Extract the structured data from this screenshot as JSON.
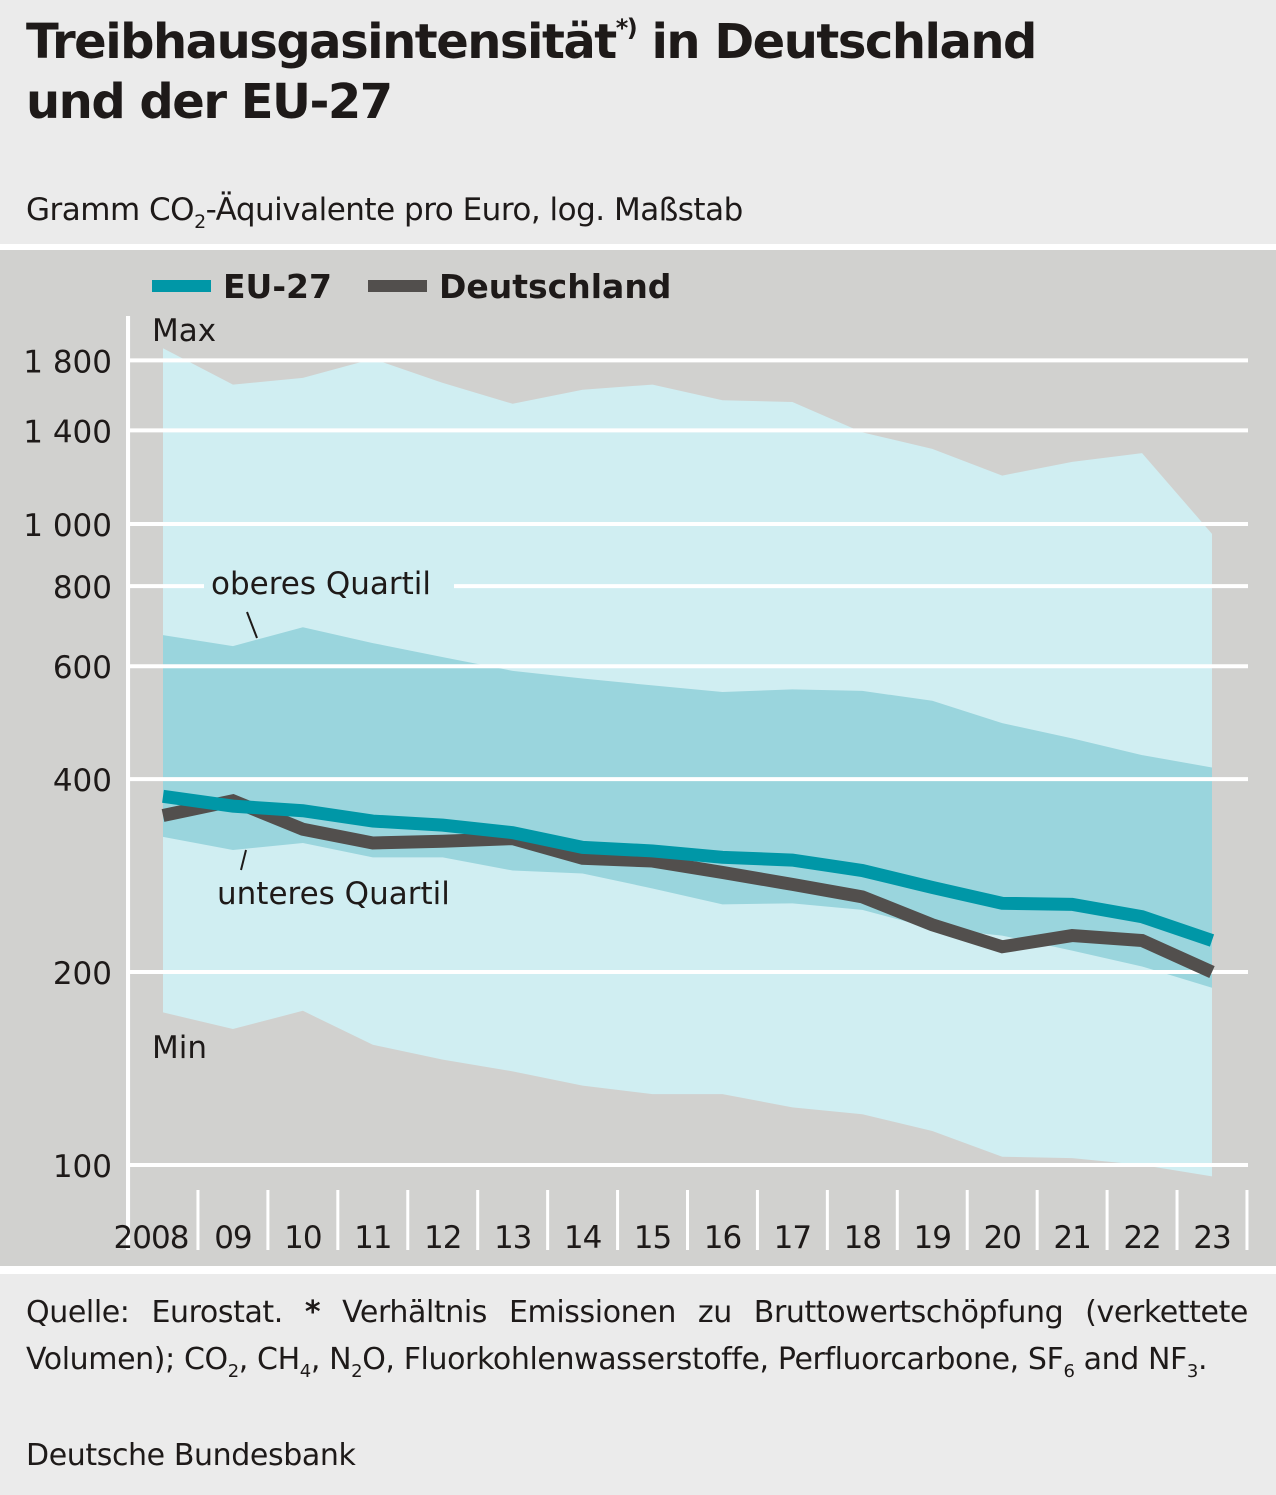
{
  "header": {
    "title_line1": "Treibhausgasintensität",
    "title_footnote_mark": "*)",
    "title_line1_rest": " in Deutschland",
    "title_line2": "und der EU-27",
    "subtitle_pre": "Gramm CO",
    "subtitle_sub": "2",
    "subtitle_post": "-Äquivalente pro Euro, log. Maßstab"
  },
  "footer": {
    "note_parts": [
      "Quelle: Eurostat. ",
      "*",
      " Verhältnis Emissionen zu Bruttowertschöpfung (verkettete Volumen); CO",
      "2",
      ", CH",
      "4",
      ", N",
      "2",
      "O, Fluorkohlenwasserstoffe, Perfluorcarbone, SF",
      "6",
      " and NF",
      "3",
      "."
    ],
    "source": "Deutsche Bundesbank"
  },
  "colors": {
    "eu27": "#0097a7",
    "deutschland": "#524f4d",
    "range_max_min": "#d0eef2",
    "range_quartile": "#9ad5dd",
    "plot_background": "#d1d1cf",
    "gridline": "#ffffff"
  },
  "chart_data": {
    "type": "line",
    "title": "Treibhausgasintensität*) in Deutschland und der EU-27",
    "subtitle": "Gramm CO2-Äquivalente pro Euro, log. Maßstab",
    "xlabel": "",
    "ylabel": "",
    "yscale": "log",
    "ylim": [
      95,
      1900
    ],
    "yticks": [
      100,
      200,
      400,
      600,
      800,
      1000,
      1400,
      1800
    ],
    "ytick_labels": [
      "100",
      "200",
      "400",
      "600",
      "800",
      "1 000",
      "1 400",
      "1 800"
    ],
    "x": [
      2008,
      2009,
      2010,
      2011,
      2012,
      2013,
      2014,
      2015,
      2016,
      2017,
      2018,
      2019,
      2020,
      2021,
      2022,
      2023
    ],
    "xtick_labels": [
      "2008",
      "09",
      "10",
      "11",
      "12",
      "13",
      "14",
      "15",
      "16",
      "17",
      "18",
      "19",
      "20",
      "21",
      "22",
      "23"
    ],
    "major_vertical_gridlines_after": [
      "2009",
      "2014",
      "2019"
    ],
    "grid": true,
    "legend": {
      "placement": "top-left",
      "entries": [
        "EU-27",
        "Deutschland"
      ]
    },
    "series": [
      {
        "name": "EU-27",
        "type": "line",
        "values": [
          376,
          363,
          357,
          344,
          339,
          330,
          313,
          309,
          302,
          299,
          288,
          271,
          256,
          255,
          244,
          224
        ]
      },
      {
        "name": "Deutschland",
        "type": "line",
        "values": [
          351,
          370,
          334,
          318,
          320,
          323,
          301,
          298,
          286,
          274,
          262,
          237,
          219,
          228,
          224,
          200
        ]
      }
    ],
    "bands": [
      {
        "name": "Max",
        "type": "area-upper",
        "values": [
          1880,
          1650,
          1690,
          1810,
          1660,
          1540,
          1620,
          1650,
          1560,
          1550,
          1390,
          1310,
          1190,
          1250,
          1290,
          965
        ]
      },
      {
        "name": "oberes Quartil",
        "type": "area-upper",
        "values": [
          671,
          645,
          690,
          652,
          620,
          590,
          574,
          560,
          547,
          552,
          549,
          530,
          489,
          463,
          436,
          417
        ]
      },
      {
        "name": "unteres Quartil",
        "type": "area-lower",
        "values": [
          325,
          310,
          318,
          302,
          302,
          288,
          285,
          270,
          255,
          256,
          250,
          234,
          228,
          216,
          204,
          189
        ]
      },
      {
        "name": "Min",
        "type": "area-lower",
        "values": [
          173,
          163,
          174,
          154,
          146,
          140,
          133,
          129,
          129,
          123,
          120,
          113,
          103,
          102.5,
          100,
          96
        ]
      }
    ],
    "annotations": [
      "Max",
      "oberes Quartil",
      "unteres Quartil",
      "Min"
    ]
  }
}
